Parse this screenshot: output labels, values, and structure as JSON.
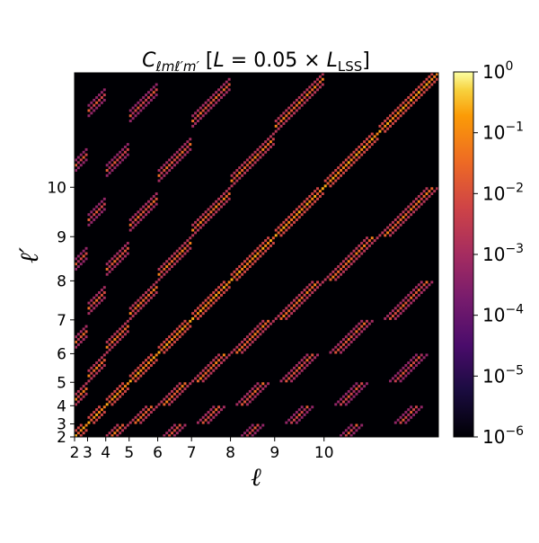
{
  "chart_data": {
    "type": "heatmap",
    "title_prefix": "C",
    "title_subscript": "ℓmℓ′m′",
    "title_bracket_open": " [",
    "title_L": "L",
    "title_mid": " = 0.05 × ",
    "title_L2": "L",
    "title_L2_sub": "LSS",
    "title_bracket_close": "]",
    "xlabel": "ℓ",
    "ylabel": "ℓ′",
    "ell_min": 2,
    "ell_max": 11,
    "xticks": [
      2,
      3,
      4,
      5,
      6,
      7,
      8,
      9,
      10
    ],
    "yticks": [
      2,
      3,
      4,
      5,
      6,
      7,
      8,
      9,
      10
    ],
    "color_scale": "log",
    "colormap": "inferno",
    "vmin": 1e-06,
    "vmax": 1,
    "colorbar_ticks": [
      {
        "base": "10",
        "exp": "0"
      },
      {
        "base": "10",
        "exp": "−1"
      },
      {
        "base": "10",
        "exp": "−2"
      },
      {
        "base": "10",
        "exp": "−3"
      },
      {
        "base": "10",
        "exp": "−4"
      },
      {
        "base": "10",
        "exp": "−5"
      },
      {
        "base": "10",
        "exp": "−6"
      }
    ],
    "coupling_rule": "nonzero only when ℓ+ℓ′ is even; diagonal stripes within each (ℓ,ℓ′) block"
  }
}
